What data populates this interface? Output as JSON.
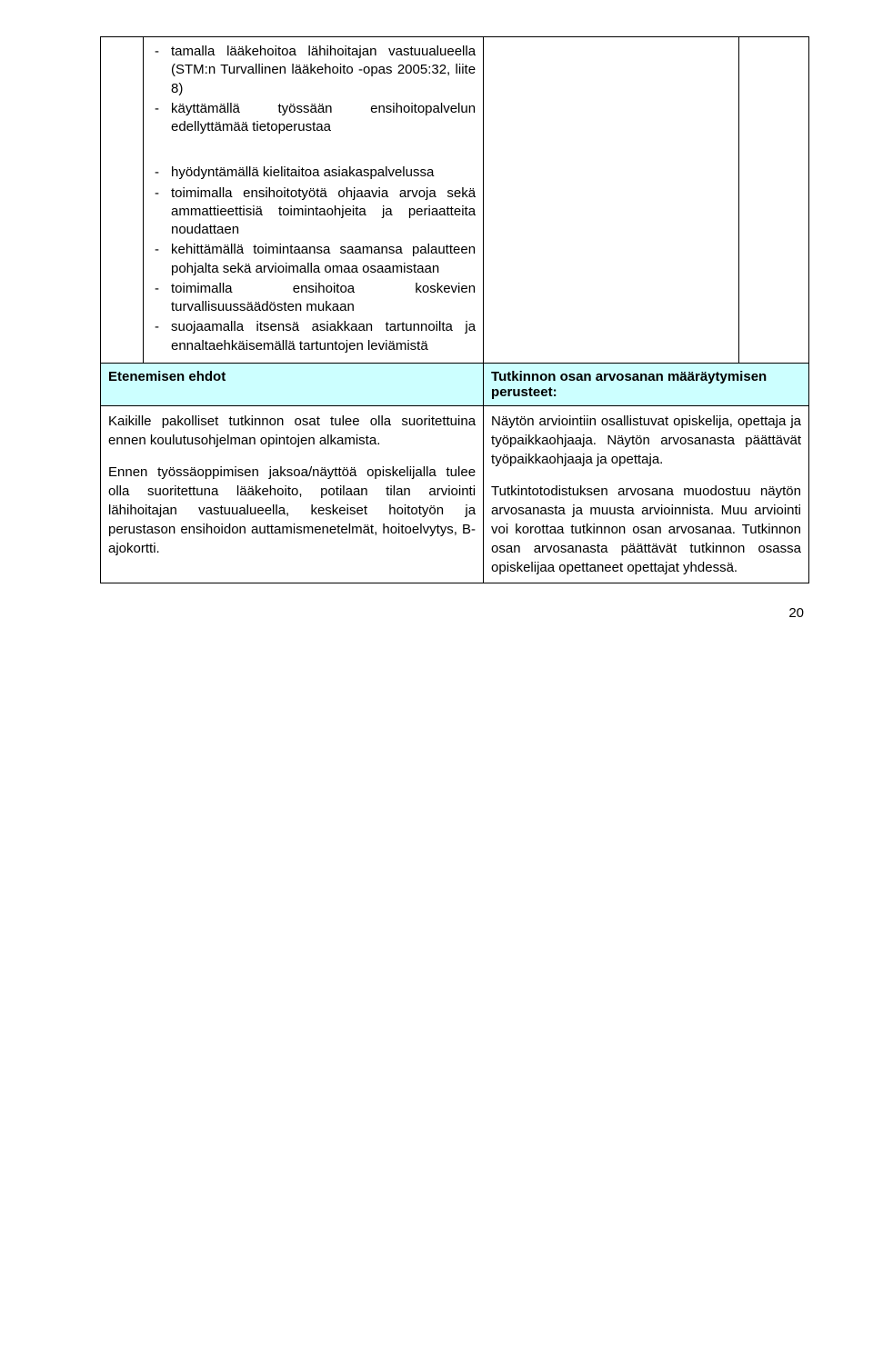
{
  "colors": {
    "header_bg": "#ccffff",
    "border": "#000000",
    "text": "#000000",
    "background": "#ffffff"
  },
  "typography": {
    "family": "Arial",
    "body_size_pt": 11,
    "line_height": 1.35
  },
  "top_block": {
    "group_a": [
      "tamalla lääkehoitoa lähihoitajan vastuualueella (STM:n Turvallinen lääkehoito -opas 2005:32, liite 8)",
      "käyttämällä työssään ensihoitopalvelun edellyttämää tietoperustaa"
    ],
    "group_b": [
      "hyödyntämällä kielitaitoa asiakaspalvelussa",
      "toimimalla ensihoitotyötä ohjaavia arvoja sekä ammattieettisiä toimintaohjeita ja periaatteita noudattaen",
      "kehittämällä toimintaansa saamansa palautteen pohjalta sekä arvioimalla omaa osaamistaan",
      "toimimalla ensihoitoa koskevien turvallisuussäädösten mukaan",
      "suojaamalla itsensä asiakkaan tartunnoilta ja ennaltaehkäisemällä tartuntojen leviämistä"
    ]
  },
  "header_row": {
    "left": "Etenemisen ehdot",
    "right": "Tutkinnon osan arvosanan määräytymisen perusteet:"
  },
  "content_row": {
    "left": [
      "Kaikille pakolliset tutkinnon osat tulee olla suoritettuina ennen koulutusohjelman opintojen alkamista.",
      "Ennen työssäoppimisen jaksoa/näyttöä opiskelijalla tulee olla suoritettuna lääkehoito, potilaan tilan arviointi lähihoitajan vastuualueella, keskeiset hoitotyön ja perustason ensihoidon auttamismenetelmät, hoitoelvytys, B-ajokortti."
    ],
    "right": [
      "Näytön arviointiin osallistuvat opiskelija, opettaja ja työpaikkaohjaaja. Näytön arvosanasta päättävät työpaikkaohjaaja ja opettaja.",
      "Tutkintotodistuksen arvosana muodostuu näytön arvosanasta ja muusta arvioinnista. Muu arviointi voi korottaa tutkinnon osan arvosanaa. Tutkinnon osan arvosanasta päättävät tutkinnon osassa opiskelijaa opettaneet opettajat yhdessä."
    ]
  },
  "page_number": "20"
}
